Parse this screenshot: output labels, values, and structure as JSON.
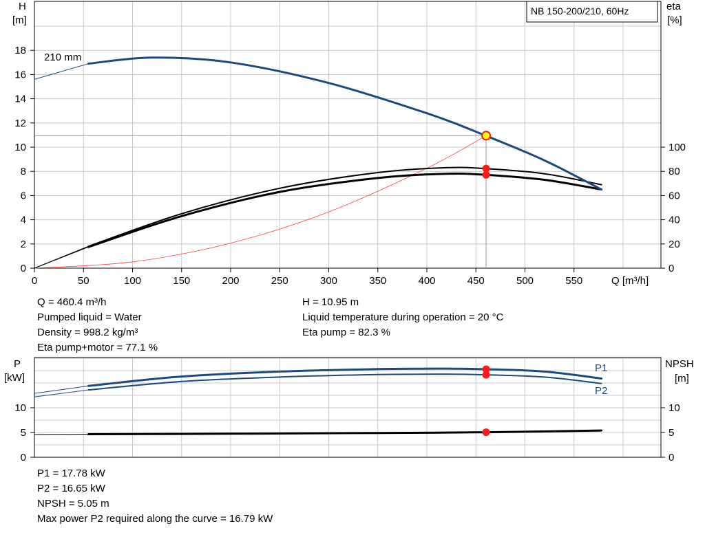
{
  "pump_title": "NB 150-200/210, 60Hz",
  "axis_labels": {
    "h_symbol": "H",
    "h_unit": "[m]",
    "eta_symbol": "eta",
    "eta_unit": "[%]",
    "q_label": "Q [m³/h]",
    "p_symbol": "P",
    "p_unit": "[kW]",
    "npsh_symbol": "NPSH",
    "npsh_unit": "[m]"
  },
  "impeller_label": "210 mm",
  "series_labels": {
    "p1": "P1",
    "p2": "P2"
  },
  "info_top_left": [
    "Q = 460.4 m³/h",
    "Pumped liquid = Water",
    "Density = 998.2 kg/m³",
    "Eta pump+motor = 77.1 %"
  ],
  "info_top_right": [
    "H = 10.95 m",
    "Liquid temperature during operation = 20 °C",
    "Eta pump = 82.3 %"
  ],
  "info_bottom": [
    "P1 = 17.78 kW",
    "P2 = 16.65 kW",
    "NPSH = 5.05 m",
    "Max power P2 required along the curve = 16.79 kW"
  ],
  "colors": {
    "head_curve": "#1a4a80",
    "eta_curve": "#000000",
    "system_curve": "#ff3b3b",
    "duty_point": "#ff1a1a",
    "duty_marker": "#ffff00",
    "grid": "#c8c8c8"
  },
  "chart_data": [
    {
      "type": "line",
      "name": "head-efficiency",
      "xlim": [
        0,
        600
      ],
      "ylim": [
        0,
        20
      ],
      "y2lim": [
        0,
        200
      ],
      "x_ticks": [
        0,
        50,
        100,
        150,
        200,
        250,
        300,
        350,
        400,
        450,
        500,
        550
      ],
      "y_ticks": [
        0,
        2,
        4,
        6,
        8,
        10,
        12,
        14,
        16,
        18
      ],
      "y2_ticks": [
        0,
        20,
        40,
        60,
        80,
        100
      ],
      "grid": true,
      "series": [
        {
          "name": "210 mm",
          "key": "head",
          "axis": "left",
          "x": [
            0,
            55,
            120,
            200,
            300,
            400,
            460,
            520,
            578
          ],
          "y": [
            15.6,
            16.9,
            17.4,
            17.0,
            15.3,
            12.8,
            10.95,
            8.9,
            6.5
          ]
        },
        {
          "key": "eta_pump",
          "axis": "right",
          "x": [
            0,
            55,
            150,
            250,
            350,
            420,
            460,
            520,
            578
          ],
          "y": [
            0,
            18,
            45,
            66,
            79,
            83,
            82.3,
            78,
            69
          ]
        },
        {
          "key": "eta_pump_motor",
          "axis": "right",
          "x": [
            0,
            55,
            150,
            250,
            350,
            420,
            460,
            520,
            578
          ],
          "y": [
            0,
            17.5,
            43,
            63,
            74.5,
            78,
            77.1,
            73,
            65
          ]
        },
        {
          "key": "system",
          "axis": "left",
          "x": [
            0,
            100,
            200,
            300,
            400,
            460.4
          ],
          "y": [
            0,
            0.52,
            2.07,
            4.65,
            8.26,
            10.95
          ]
        }
      ],
      "duty_point": {
        "q": 460.4,
        "h": 10.95,
        "eta_pump": 82.3,
        "eta_pump_motor": 77.1
      }
    },
    {
      "type": "line",
      "name": "power-npsh",
      "xlim": [
        0,
        600
      ],
      "ylim": [
        0,
        20
      ],
      "y2lim": [
        0,
        20
      ],
      "y_ticks": [
        0,
        5,
        10
      ],
      "y2_ticks": [
        0,
        5,
        10
      ],
      "grid": true,
      "series": [
        {
          "name": "P1",
          "key": "p1",
          "axis": "left",
          "x": [
            0,
            55,
            150,
            250,
            350,
            420,
            460,
            520,
            578
          ],
          "y": [
            12.9,
            14.4,
            16.3,
            17.3,
            17.8,
            17.9,
            17.78,
            17.3,
            15.9
          ]
        },
        {
          "name": "P2",
          "key": "p2",
          "axis": "left",
          "x": [
            0,
            55,
            150,
            250,
            350,
            420,
            460,
            520,
            578
          ],
          "y": [
            12.2,
            13.6,
            15.3,
            16.2,
            16.7,
            16.79,
            16.65,
            16.2,
            14.9
          ]
        },
        {
          "key": "npsh",
          "axis": "right",
          "x": [
            0,
            55,
            200,
            350,
            460.4,
            578
          ],
          "y": [
            4.6,
            4.65,
            4.75,
            4.9,
            5.05,
            5.4
          ]
        }
      ],
      "duty_point": {
        "q": 460.4,
        "p1": 17.78,
        "p2": 16.65,
        "npsh": 5.05
      }
    }
  ]
}
